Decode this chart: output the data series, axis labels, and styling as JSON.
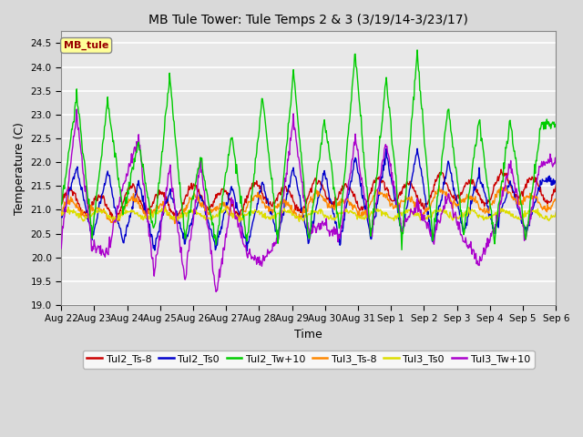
{
  "title": "MB Tule Tower: Tule Temps 2 & 3 (3/19/14-3/23/17)",
  "xlabel": "Time",
  "ylabel": "Temperature (C)",
  "ylim": [
    19.0,
    24.75
  ],
  "yticks": [
    19.0,
    19.5,
    20.0,
    20.5,
    21.0,
    21.5,
    22.0,
    22.5,
    23.0,
    23.5,
    24.0,
    24.5
  ],
  "xtick_labels": [
    "Aug 22",
    "Aug 23",
    "Aug 24",
    "Aug 25",
    "Aug 26",
    "Aug 27",
    "Aug 28",
    "Aug 29",
    "Aug 30",
    "Aug 31",
    "Sep 1",
    "Sep 2",
    "Sep 3",
    "Sep 4",
    "Sep 5",
    "Sep 6"
  ],
  "colors": {
    "Tul2_Ts-8": "#cc0000",
    "Tul2_Ts0": "#0000cc",
    "Tul2_Tw+10": "#00cc00",
    "Tul3_Ts-8": "#ff8800",
    "Tul3_Ts0": "#dddd00",
    "Tul3_Tw+10": "#aa00cc"
  },
  "legend_text": "MB_tule",
  "legend_fg": "#990000",
  "legend_bg": "#ffff99",
  "fig_bg": "#d9d9d9",
  "plot_bg": "#e8e8e8",
  "grid_color": "#ffffff",
  "n_days": 16,
  "pts_per_day": 48,
  "green_peaks": [
    21.0,
    23.4,
    20.5,
    23.3,
    20.9,
    22.4,
    20.5,
    23.8,
    20.4,
    22.1,
    20.3,
    22.6,
    20.3,
    23.4,
    20.4,
    23.9,
    20.4,
    22.9,
    20.6,
    24.3,
    20.4,
    23.8,
    20.3,
    24.3,
    20.4,
    23.2,
    20.5,
    22.9,
    20.4,
    22.9,
    20.4,
    22.8
  ],
  "blue_peaks": [
    20.8,
    21.9,
    20.4,
    21.8,
    20.3,
    21.6,
    20.2,
    21.4,
    20.3,
    21.3,
    20.2,
    21.5,
    20.2,
    21.6,
    20.4,
    21.9,
    20.3,
    21.8,
    20.3,
    22.1,
    20.4,
    22.2,
    20.5,
    22.3,
    20.3,
    22.0,
    20.5,
    21.8,
    20.5,
    21.6,
    20.5,
    21.6
  ],
  "purple_peaks": [
    20.3,
    23.0,
    20.2,
    20.1,
    21.5,
    22.5,
    19.6,
    21.9,
    19.5,
    22.0,
    19.2,
    21.2,
    20.1,
    19.9,
    20.4,
    22.9,
    20.5,
    20.7,
    20.4,
    22.5,
    20.5,
    22.4,
    20.6,
    21.1,
    20.4,
    21.3,
    20.4,
    19.9,
    20.6,
    22.0,
    20.4,
    22.0
  ],
  "red_base": 21.1,
  "red_amp": 0.25,
  "orange_base": 20.95,
  "orange_amp": 0.15,
  "yellow_base": 20.9,
  "yellow_amp": 0.08,
  "title_fontsize": 10,
  "axis_fontsize": 9,
  "tick_fontsize": 7.5,
  "legend_fontsize": 8
}
